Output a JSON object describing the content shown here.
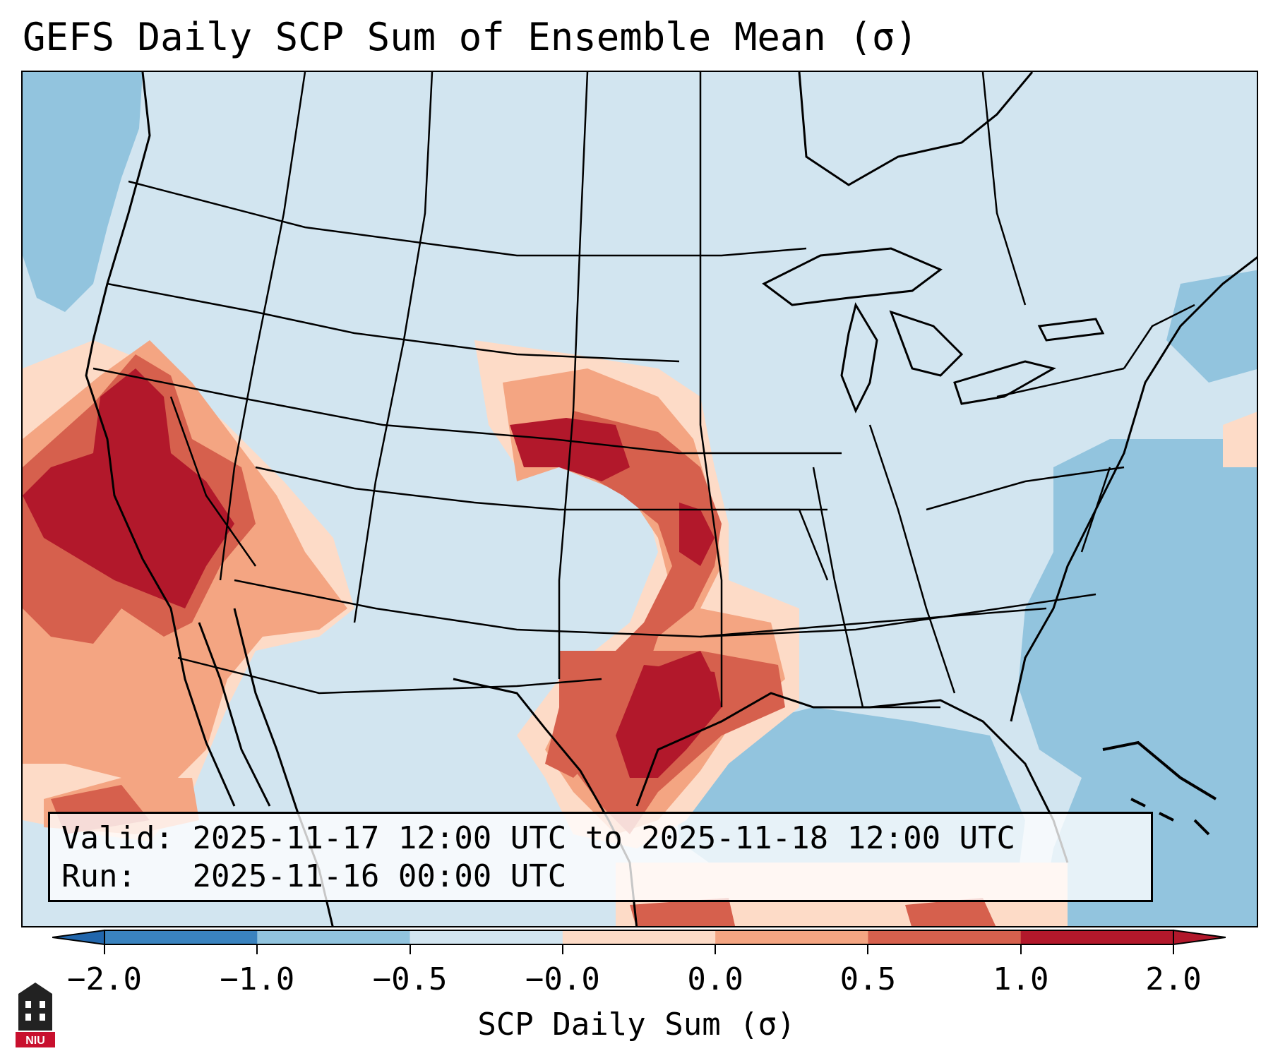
{
  "title": "GEFS Daily SCP Sum of Ensemble Mean (σ)",
  "valid": {
    "valid_label": "Valid:",
    "valid_value": "2025-11-17 12:00 UTC to 2025-11-18 12:00 UTC",
    "run_label": "Run:",
    "run_value": "2025-11-16 00:00 UTC"
  },
  "colorbar": {
    "title": "SCP Daily Sum (σ)",
    "ticks": [
      "−2.0",
      "−1.0",
      "−0.5",
      "−0.0",
      "0.0",
      "0.5",
      "1.0",
      "2.0"
    ],
    "colors": [
      "#3a83bf",
      "#92c4de",
      "#d2e5f0",
      "#f7f7f7",
      "#fddbc7",
      "#f4a582",
      "#d6604d",
      "#b2182b"
    ]
  },
  "map": {
    "background_color": "#d2e5f0",
    "ocean_color": "#92c4de",
    "high_color": "#b2182b",
    "mid_color": "#d6604d",
    "low_color": "#f4a582",
    "faint_color": "#fddbc7"
  },
  "logo": {
    "text": "NIU",
    "color": "#c8102e"
  }
}
